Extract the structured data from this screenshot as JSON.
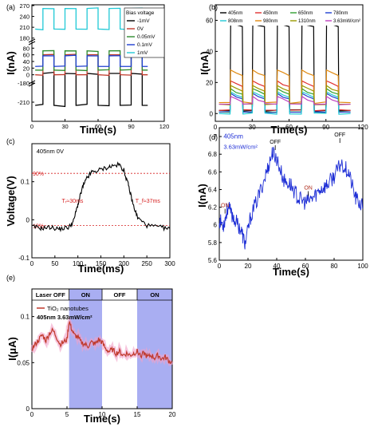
{
  "chart_data": [
    {
      "type": "line",
      "panel": "(a)",
      "xlabel": "Time(s)",
      "ylabel": "I(nA)",
      "xlim": [
        0,
        120
      ],
      "xticks": [
        0,
        30,
        60,
        90,
        120
      ],
      "ylim": [
        -240,
        270
      ],
      "axis_break": [
        -180,
        -20
      ],
      "axis_break_upper": [
        100,
        175
      ],
      "yticks": [
        -210,
        -180,
        0,
        20,
        40,
        60,
        80,
        180,
        210,
        240,
        270
      ],
      "legend_title": "Bias voltage",
      "legend_position": "top-right",
      "on_intervals": [
        [
          10,
          20
        ],
        [
          30,
          40
        ],
        [
          50,
          60
        ],
        [
          70,
          80
        ],
        [
          90,
          100
        ]
      ],
      "x": [
        3,
        10,
        20,
        30,
        40,
        50,
        60,
        70,
        80,
        90,
        100,
        105
      ],
      "series": [
        {
          "name": "-1mV",
          "color": "#000000",
          "values": [
            -215,
            -165,
            -215,
            -165,
            -215,
            -165,
            -215,
            -165,
            -215,
            -165,
            -215,
            -215
          ]
        },
        {
          "name": "0V",
          "color": "#c0392b",
          "values": [
            0,
            60,
            0,
            60,
            0,
            60,
            0,
            60,
            0,
            60,
            0,
            0
          ]
        },
        {
          "name": "0.05mV",
          "color": "#2e8b2e",
          "values": [
            14,
            72,
            14,
            72,
            14,
            72,
            14,
            72,
            14,
            72,
            14,
            14
          ]
        },
        {
          "name": "0.1mV",
          "color": "#1f3fd1",
          "values": [
            25,
            57,
            25,
            57,
            25,
            57,
            25,
            57,
            25,
            57,
            25,
            25
          ]
        },
        {
          "name": "1mV",
          "color": "#21c9d6",
          "values": [
            205,
            262,
            205,
            262,
            205,
            262,
            205,
            262,
            205,
            262,
            205,
            205
          ]
        }
      ]
    },
    {
      "type": "line",
      "panel": "(b)",
      "xlabel": "Time(s)",
      "ylabel": "I(nA)",
      "xlim": [
        0,
        120
      ],
      "xticks": [
        0,
        30,
        60,
        90,
        120
      ],
      "ylim": [
        -5,
        70
      ],
      "yticks": [
        0,
        20,
        40,
        60
      ],
      "legend_position": "top",
      "on_intervals": [
        [
          12,
          22
        ],
        [
          30,
          40
        ],
        [
          50,
          60
        ],
        [
          70,
          80
        ],
        [
          90,
          100
        ]
      ],
      "x": [
        3,
        12,
        22,
        30,
        40,
        50,
        60,
        70,
        80,
        90,
        100,
        110
      ],
      "series": [
        {
          "name": "405nm",
          "color": "#000000",
          "values": [
            2,
            57,
            2,
            57,
            2,
            57,
            2,
            57,
            2,
            58,
            2,
            2
          ]
        },
        {
          "name": "450nm",
          "color": "#e03030",
          "values": [
            2,
            19,
            2,
            19,
            2,
            19,
            2,
            19,
            2,
            19,
            2,
            2
          ]
        },
        {
          "name": "650nm",
          "color": "#30a030",
          "values": [
            1,
            14,
            1,
            14,
            1,
            14,
            1,
            14,
            1,
            14,
            1,
            1
          ]
        },
        {
          "name": "780nm",
          "color": "#1f3fd1",
          "values": [
            1,
            11,
            1,
            11,
            1,
            11,
            1,
            11,
            1,
            11,
            1,
            1
          ]
        },
        {
          "name": "808nm",
          "color": "#21c9d6",
          "values": [
            0,
            12,
            0,
            12,
            0,
            12,
            0,
            12,
            0,
            12,
            0,
            0
          ]
        },
        {
          "name": "980nm",
          "color": "#e08a10",
          "values": [
            7,
            26,
            7,
            26,
            7,
            26,
            7,
            26,
            7,
            26,
            7,
            7
          ]
        },
        {
          "name": "1310nm",
          "color": "#9a9a00",
          "values": [
            6,
            16,
            6,
            16,
            6,
            16,
            6,
            16,
            6,
            16,
            6,
            6
          ]
        },
        {
          "name": "3.63mW/cm²",
          "color": "#c040c0",
          "values": [
            6,
            9,
            6,
            9,
            6,
            9,
            6,
            9,
            6,
            9,
            6,
            6
          ]
        }
      ]
    },
    {
      "type": "line",
      "panel": "(c)",
      "xlabel": "Time(ms)",
      "ylabel": "Voltage(V)",
      "xlim": [
        0,
        300
      ],
      "xticks": [
        0,
        50,
        100,
        150,
        200,
        250,
        300
      ],
      "ylim": [
        -0.1,
        0.2
      ],
      "yticks": [
        -0.1,
        0.0,
        0.1
      ],
      "reference_lines": [
        {
          "label": "90%",
          "y": 0.122
        },
        {
          "label": "10%",
          "y": -0.015
        }
      ],
      "annotations": [
        "405nm 0V",
        "Tᵣ≈30ms",
        "T_f≈37ms"
      ],
      "x": [
        0,
        20,
        40,
        60,
        80,
        90,
        100,
        110,
        120,
        130,
        150,
        170,
        190,
        200,
        210,
        220,
        230,
        250,
        280,
        300
      ],
      "series": [
        {
          "name": "",
          "color": "#000000",
          "values": [
            -0.018,
            -0.022,
            -0.02,
            -0.024,
            -0.02,
            -0.005,
            0.04,
            0.085,
            0.11,
            0.125,
            0.132,
            0.14,
            0.145,
            0.13,
            0.09,
            0.04,
            0.005,
            -0.015,
            -0.02,
            -0.025
          ]
        }
      ]
    },
    {
      "type": "line",
      "panel": "(d)",
      "xlabel": "Time(s)",
      "ylabel": "I(nA)",
      "xlim": [
        0,
        100
      ],
      "xticks": [
        0,
        20,
        40,
        60,
        80,
        100
      ],
      "ylim": [
        5.6,
        7.1
      ],
      "yticks": [
        5.6,
        5.8,
        6.0,
        6.2,
        6.4,
        6.6,
        6.8,
        7.0
      ],
      "annotations": [
        "405nm",
        "3.63mW/cm²",
        "ON",
        "OFF",
        "ON",
        "OFF"
      ],
      "x": [
        0,
        3,
        6,
        10,
        15,
        18,
        22,
        28,
        33,
        37,
        40,
        45,
        50,
        55,
        60,
        65,
        70,
        75,
        80,
        85,
        90,
        95,
        100
      ],
      "series": [
        {
          "name": "",
          "color": "#1f2fd6",
          "values": [
            6.05,
            6.0,
            6.2,
            6.08,
            5.95,
            5.78,
            6.1,
            6.35,
            6.6,
            6.82,
            6.75,
            6.5,
            6.45,
            6.3,
            6.25,
            6.3,
            6.4,
            6.45,
            6.55,
            6.7,
            6.6,
            6.3,
            6.2
          ]
        }
      ]
    },
    {
      "type": "line",
      "panel": "(e)",
      "xlabel": "Time(s)",
      "ylabel": "I(μA)",
      "xlim": [
        0,
        20
      ],
      "xticks": [
        0,
        5,
        10,
        15,
        20
      ],
      "ylim": [
        0,
        0.13
      ],
      "yticks": [
        0,
        0.05,
        0.1
      ],
      "shaded_intervals": [
        [
          5.3,
          10
        ],
        [
          15,
          20
        ]
      ],
      "shaded_color": "#a9aef2",
      "segments": [
        "Laser OFF",
        "ON",
        "OFF",
        "ON"
      ],
      "legend": [
        "TiO₂ nanotubes",
        "405nm 3.63mW/cm²"
      ],
      "x": [
        0,
        0.5,
        1,
        1.5,
        2,
        2.5,
        3,
        3.5,
        4,
        4.5,
        5,
        5.3,
        5.6,
        6,
        6.5,
        7,
        7.5,
        8,
        8.5,
        9,
        9.5,
        10,
        10.5,
        11,
        11.5,
        12,
        12.5,
        13,
        13.5,
        14,
        14.5,
        15,
        15.5,
        16,
        16.5,
        17,
        17.5,
        18,
        18.5,
        19,
        19.5,
        20
      ],
      "series": [
        {
          "name": "TiO₂ nanotubes",
          "color": "#c0392b",
          "values": [
            0.065,
            0.07,
            0.075,
            0.08,
            0.074,
            0.082,
            0.085,
            0.078,
            0.07,
            0.072,
            0.075,
            0.095,
            0.088,
            0.08,
            0.078,
            0.072,
            0.07,
            0.068,
            0.072,
            0.07,
            0.075,
            0.072,
            0.065,
            0.062,
            0.064,
            0.06,
            0.062,
            0.058,
            0.06,
            0.058,
            0.06,
            0.062,
            0.058,
            0.06,
            0.056,
            0.058,
            0.055,
            0.058,
            0.054,
            0.056,
            0.052,
            0.05
          ]
        }
      ]
    }
  ]
}
